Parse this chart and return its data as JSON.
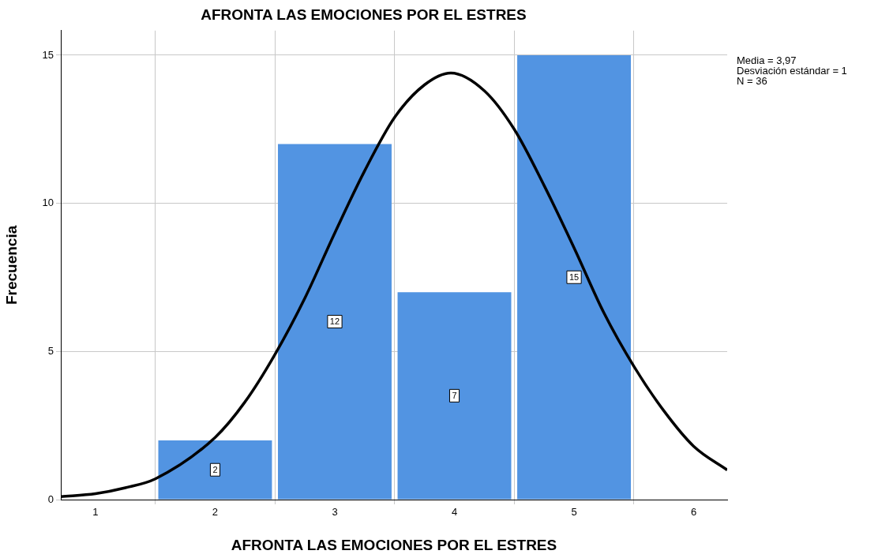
{
  "chart_data": {
    "type": "histogram",
    "title": "AFRONTA LAS EMOCIONES POR EL ESTRES",
    "xlabel": "AFRONTA LAS EMOCIONES POR EL ESTRES",
    "ylabel": "Frecuencia",
    "bins": [
      1.5,
      2.5,
      3.5,
      4.5,
      5.5
    ],
    "values": [
      2,
      12,
      7,
      15
    ],
    "color": "#5294e2",
    "value_labels": [
      "2",
      "12",
      "7",
      "15"
    ],
    "series": [
      {
        "type": "line",
        "color": "#000000",
        "x": [
          0.71,
          1,
          1.25,
          1.5,
          2,
          2.25,
          2.5,
          2.75,
          3,
          3.25,
          3.5,
          3.75,
          3.97,
          4.25,
          4.5,
          4.75,
          5,
          5.25,
          5.5,
          5.75,
          6,
          6.28
        ],
        "values": [
          0.1,
          0.2,
          0.4,
          0.7,
          2.1,
          3.3,
          4.9,
          6.8,
          9,
          11.1,
          12.9,
          14,
          14.4,
          13.8,
          12.5,
          10.6,
          8.5,
          6.3,
          4.5,
          3,
          1.8,
          1
        ]
      }
    ],
    "xlim": [
      0.71,
      6.28
    ],
    "xticks": [
      1,
      2,
      3,
      4,
      5,
      6
    ],
    "ylim": [
      0,
      15.83
    ],
    "yticks": [
      0,
      5,
      10,
      15
    ],
    "grid": true,
    "legend": false,
    "marker": "none",
    "line_style": "solid",
    "annotations": [
      "Media = 3,97",
      "Desviación estándar = 1",
      "N = 36"
    ]
  }
}
